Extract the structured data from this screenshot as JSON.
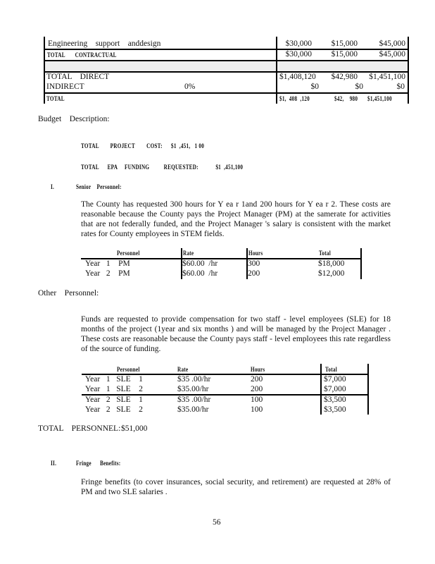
{
  "budget_table": {
    "rows": [
      {
        "label": "Engineering    support    anddesign",
        "pct": "",
        "c1": "$30,000",
        "c2": "$15,000",
        "c3": "$45,000",
        "style": "normal"
      },
      {
        "label": "TOTAL       CONTRACTUAL",
        "pct": "",
        "c1": "$30,000",
        "c2": "$15,000",
        "c3": "$45,000",
        "style": "cond"
      },
      {
        "label": "TOTAL    DIRECT",
        "pct": "",
        "c1": "$1,408,120",
        "c2": "$42,980",
        "c3": "$1,451,100",
        "style": "normal"
      },
      {
        "label": "INDIRECT",
        "pct": "0%",
        "c1": "$0",
        "c2": "$0",
        "c3": "$0",
        "style": "normal"
      },
      {
        "label": "TOTAL",
        "pct": "",
        "c1": "$1,  408  ,120",
        "c2": "$42,    980",
        "c3": "$1,451,100",
        "style": "cond"
      }
    ]
  },
  "budget_description": {
    "heading": "Budget    Description:",
    "total_project_cost": "TOTAL        PROJECT        COST:      $1  ,451,   1 00",
    "total_epa_funding": "TOTAL      EPA     FUNDING          REQUESTED:            $1  ,451,100"
  },
  "senior": {
    "number": "I.",
    "heading": "Senior    Personnel:",
    "paragraph": "The County  has  requested   300  hours  for  Y   ea r 1and  200 hours  for  Y  ea r 2.  These   costs  are reasonable   because   the County  pays  the  Project   Manager    (PM)   at the  samerate    for  activities that  are  not federally   funded,   and  the  Project   Manager   's salary  is consistent   with  the  market rates  for  County  employees    in STEM   fields.",
    "table": {
      "headers": [
        "Personnel",
        "Rate",
        "Hours",
        "Total"
      ],
      "rows": [
        [
          "Year   1    PM",
          "$60.00  /hr",
          "300",
          "$18,000"
        ],
        [
          "Year   2    PM",
          "$60.00  /hr",
          "200",
          "$12,000"
        ]
      ]
    }
  },
  "other": {
    "heading": "Other    Personnel:",
    "paragraph": "Funds   are  requested    to provide   compensation     for  two staff - level  employees    (SLE)   for  18 months   of  the  project   (1year    and six  months     ) and  will  be managed    by  the  Project   Manager   . These   costs  are  reasonable    because    the County  pays  staff - level  employees    this  rate regardless    of  the  source   of  funding.",
    "table": {
      "headers": [
        "Personnel",
        "Rate",
        "Hours",
        "Total"
      ],
      "rows": [
        [
          "Year   1   SLE    1",
          "$35 .00/hr",
          "200",
          "$7,000"
        ],
        [
          "Year   1   SLE    2",
          "$35.00/hr",
          "200",
          "$7,000"
        ],
        [
          "Year   2   SLE    1",
          "$35 .00/hr",
          "100",
          "$3,500"
        ],
        [
          "Year   2   SLE    2",
          "$35.00/hr",
          "100",
          "$3,500"
        ]
      ]
    },
    "total_label": "TOTAL    PERSONNEL:",
    "total_value": "$51,000"
  },
  "fringe": {
    "number": "II.",
    "heading": "Fringe      Benefits:",
    "paragraph": "Fringe   benefits   (to cover   insurances,    social   security,   and  retirement)    are  requested    at 28%   of PM  and  two  SLE  salaries  ."
  },
  "page_number": "56",
  "colors": {
    "shaded_row": "#eeeeee",
    "text": "#111111"
  }
}
